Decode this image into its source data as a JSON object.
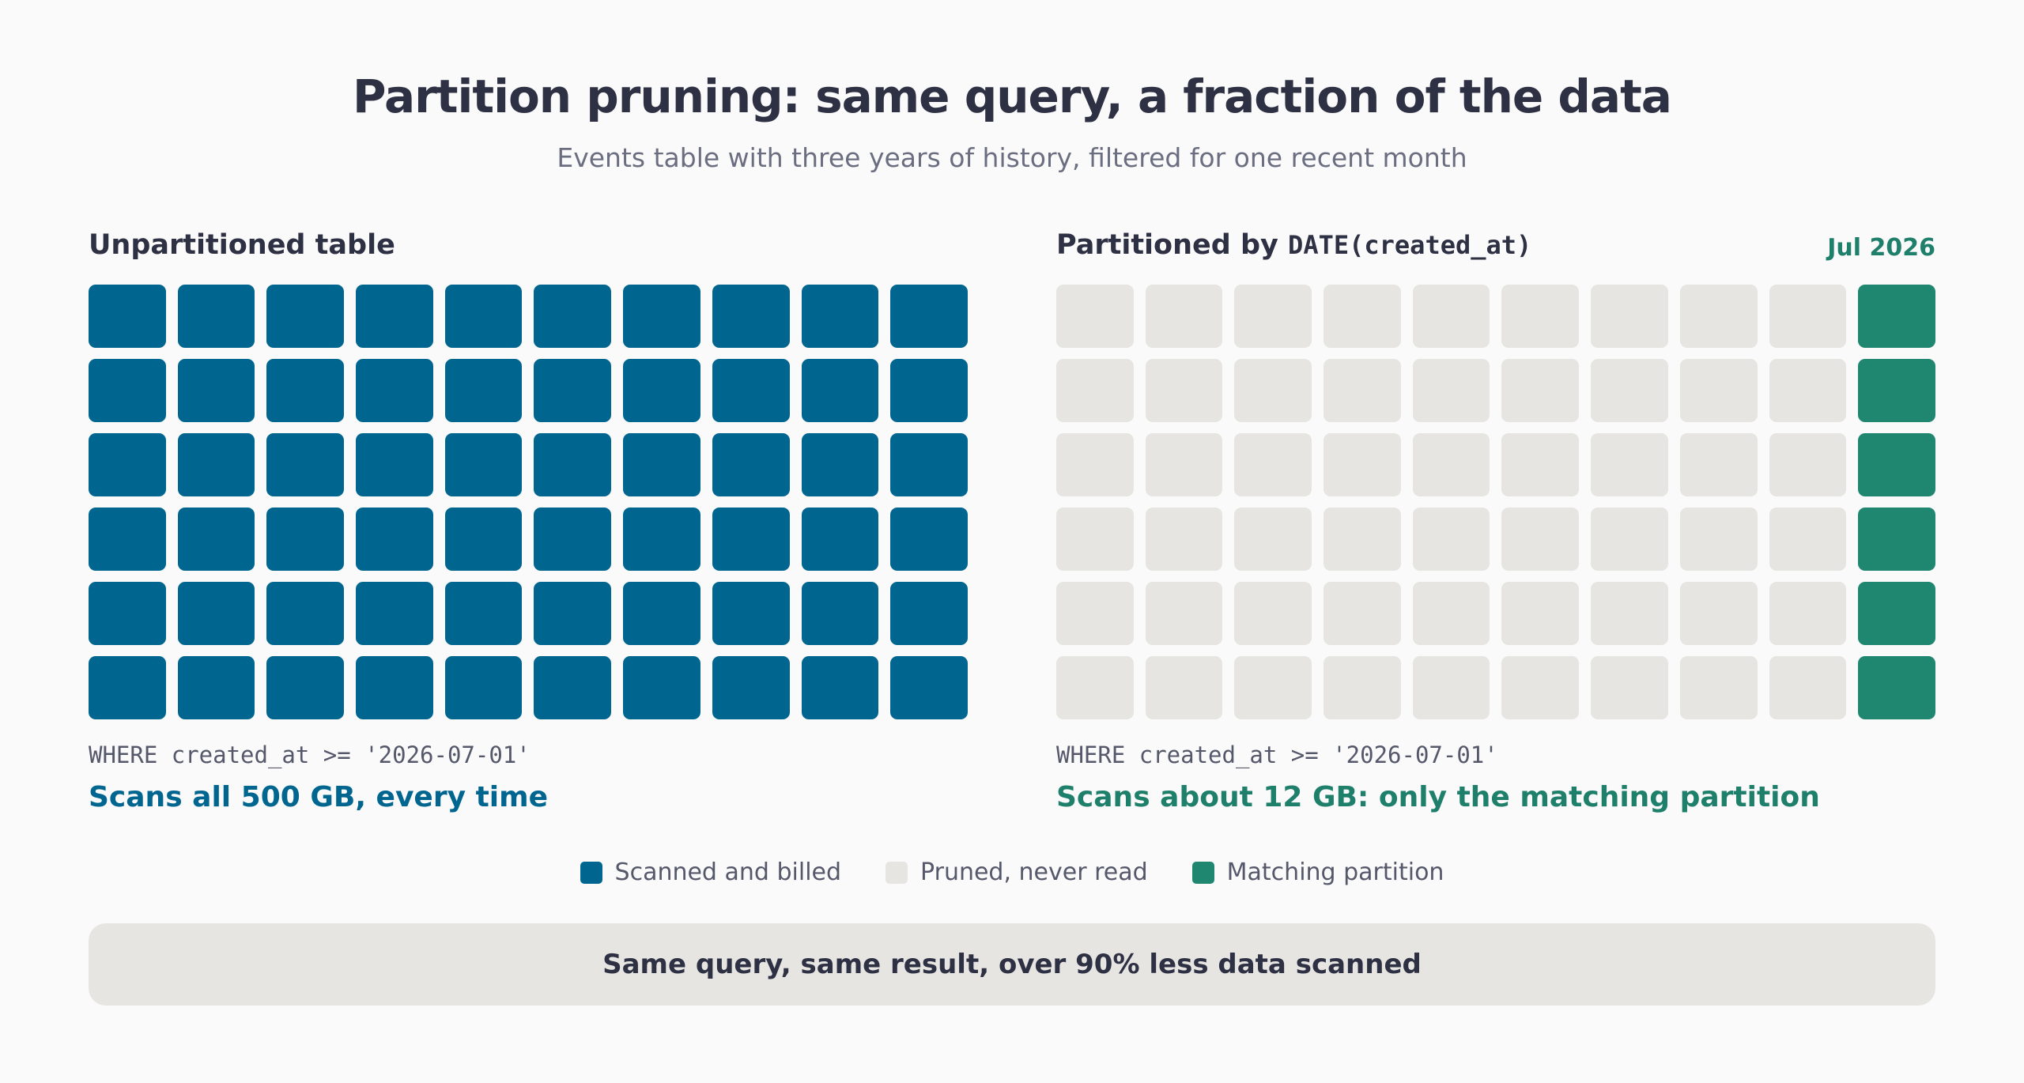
{
  "header": {
    "title": "Partition pruning: same query, a fraction of the data",
    "subtitle": "Events table with three years of history, filtered for one recent month"
  },
  "left_panel": {
    "title": "Unpartitioned table",
    "grid": {
      "rows": 6,
      "cols": 10,
      "highlight_last_col": false
    },
    "sql": "WHERE created_at >= '2026-07-01'",
    "result": "Scans all 500 GB, every time"
  },
  "right_panel": {
    "title_prefix": "Partitioned by ",
    "title_code": "DATE(created_at)",
    "month_label": "Jul 2026",
    "grid": {
      "rows": 6,
      "cols": 10,
      "highlight_last_col": true
    },
    "sql": "WHERE created_at >= '2026-07-01'",
    "result": "Scans about 12 GB: only the matching partition"
  },
  "legend": [
    {
      "label": "Scanned and billed",
      "color": "#006690"
    },
    {
      "label": "Pruned, never read",
      "color": "#e6e5e1"
    },
    {
      "label": "Matching partition",
      "color": "#1f8670"
    }
  ],
  "callout": "Same query, same result, over 90% less data scanned",
  "colors": {
    "scanned": "#006690",
    "pruned": "#e6e5e1",
    "match": "#1f8670"
  }
}
